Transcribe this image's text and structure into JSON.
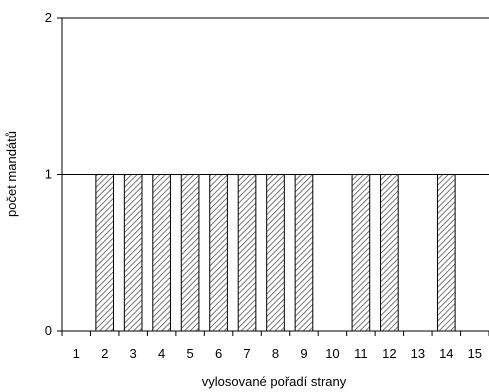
{
  "chart_data": {
    "type": "bar",
    "categories": [
      "1",
      "2",
      "3",
      "4",
      "5",
      "6",
      "7",
      "8",
      "9",
      "10",
      "11",
      "12",
      "13",
      "14",
      "15"
    ],
    "values": [
      0,
      1,
      1,
      1,
      1,
      1,
      1,
      1,
      1,
      0,
      1,
      1,
      0,
      1,
      0
    ],
    "title": "",
    "xlabel": "vylosované pořadí strany",
    "ylabel": "počet mandátů",
    "ylim": [
      0,
      2
    ],
    "yticks": [
      0,
      1,
      2
    ],
    "grid": "horizontal",
    "legend": "none",
    "bar_fill": "hatched",
    "colors": {
      "bar_stroke": "#000000",
      "hatch": "#555555",
      "grid": "#000000",
      "axis": "#000000"
    }
  }
}
